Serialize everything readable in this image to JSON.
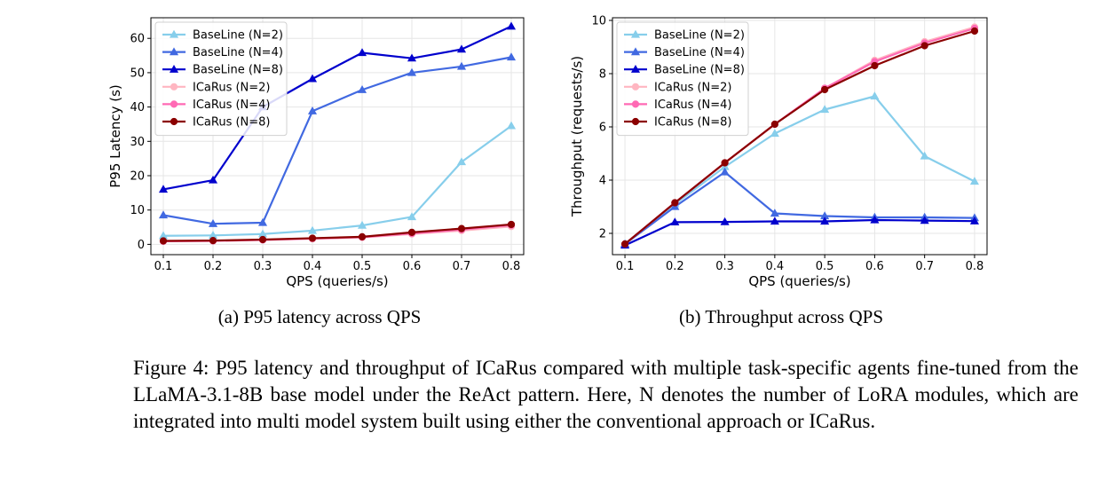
{
  "chart_data": [
    {
      "type": "line",
      "xlabel": "QPS (queries/s)",
      "ylabel": "P95 Latency (s)",
      "x": [
        0.1,
        0.2,
        0.3,
        0.4,
        0.5,
        0.6,
        0.7,
        0.8
      ],
      "xticks": [
        "0.1",
        "0.2",
        "0.3",
        "0.4",
        "0.5",
        "0.6",
        "0.7",
        "0.8"
      ],
      "yticks": [
        "0",
        "10",
        "20",
        "30",
        "40",
        "50",
        "60"
      ],
      "yticks_values": [
        0,
        10,
        20,
        30,
        40,
        50,
        60
      ],
      "xlim": [
        0.075,
        0.825
      ],
      "ylim": [
        -3,
        66
      ],
      "grid": true,
      "legend_position": "top-left",
      "series": [
        {
          "name": "BaseLine (N=2)",
          "color": "#87ceeb",
          "marker": "triangle",
          "values": [
            2.5,
            2.6,
            3.0,
            4.0,
            5.5,
            8.0,
            24.0,
            34.5
          ]
        },
        {
          "name": "BaseLine (N=4)",
          "color": "#4169e1",
          "marker": "triangle",
          "values": [
            8.5,
            6.0,
            6.3,
            38.8,
            45.0,
            50.0,
            51.8,
            54.5
          ]
        },
        {
          "name": "BaseLine (N=8)",
          "color": "#0000cd",
          "marker": "triangle",
          "values": [
            16.0,
            18.7,
            40.0,
            48.2,
            55.8,
            54.2,
            56.8,
            63.5
          ]
        },
        {
          "name": "ICaRus (N=2)",
          "color": "#ffb6c1",
          "marker": "circle",
          "values": [
            0.9,
            1.0,
            1.3,
            1.6,
            2.0,
            3.0,
            4.0,
            5.2
          ]
        },
        {
          "name": "ICaRus (N=4)",
          "color": "#ff69b4",
          "marker": "circle",
          "values": [
            0.9,
            1.0,
            1.3,
            1.7,
            2.1,
            3.2,
            4.3,
            5.6
          ]
        },
        {
          "name": "ICaRus (N=8)",
          "color": "#8b0000",
          "marker": "circle",
          "values": [
            1.0,
            1.1,
            1.4,
            1.8,
            2.2,
            3.5,
            4.6,
            5.8
          ]
        }
      ]
    },
    {
      "type": "line",
      "xlabel": "QPS (queries/s)",
      "ylabel": "Throughput (requests/s)",
      "x": [
        0.1,
        0.2,
        0.3,
        0.4,
        0.5,
        0.6,
        0.7,
        0.8
      ],
      "xticks": [
        "0.1",
        "0.2",
        "0.3",
        "0.4",
        "0.5",
        "0.6",
        "0.7",
        "0.8"
      ],
      "yticks": [
        "2",
        "4",
        "6",
        "8",
        "10"
      ],
      "yticks_values": [
        2,
        4,
        6,
        8,
        10
      ],
      "xlim": [
        0.075,
        0.825
      ],
      "ylim": [
        1.2,
        10.1
      ],
      "grid": true,
      "legend_position": "top-left",
      "series": [
        {
          "name": "BaseLine (N=2)",
          "color": "#87ceeb",
          "marker": "triangle",
          "values": [
            1.6,
            3.1,
            4.5,
            5.75,
            6.65,
            7.15,
            4.9,
            3.95
          ]
        },
        {
          "name": "BaseLine (N=4)",
          "color": "#4169e1",
          "marker": "triangle",
          "values": [
            1.6,
            3.0,
            4.3,
            2.75,
            2.65,
            2.6,
            2.6,
            2.58
          ]
        },
        {
          "name": "BaseLine (N=8)",
          "color": "#0000cd",
          "marker": "triangle",
          "values": [
            1.55,
            2.42,
            2.43,
            2.45,
            2.45,
            2.5,
            2.48,
            2.46
          ]
        },
        {
          "name": "ICaRus (N=2)",
          "color": "#ffb6c1",
          "marker": "circle",
          "values": [
            1.6,
            3.15,
            4.65,
            6.1,
            7.45,
            8.5,
            9.2,
            9.75
          ]
        },
        {
          "name": "ICaRus (N=4)",
          "color": "#ff69b4",
          "marker": "circle",
          "values": [
            1.6,
            3.15,
            4.65,
            6.1,
            7.45,
            8.45,
            9.15,
            9.7
          ]
        },
        {
          "name": "ICaRus (N=8)",
          "color": "#8b0000",
          "marker": "circle",
          "values": [
            1.6,
            3.15,
            4.65,
            6.1,
            7.4,
            8.3,
            9.05,
            9.6
          ]
        }
      ]
    }
  ],
  "subcaptions": {
    "a": "(a) P95 latency across QPS",
    "b": "(b) Throughput across QPS"
  },
  "figure_caption": "Figure 4: P95 latency and throughput of ICaRus compared with multiple task-specific agents fine-tuned from the LLaMA-3.1-8B base model under the ReAct pattern. Here, N denotes the number of LoRA modules, which are integrated into multi model system built using either the conventional approach or ICaRus."
}
